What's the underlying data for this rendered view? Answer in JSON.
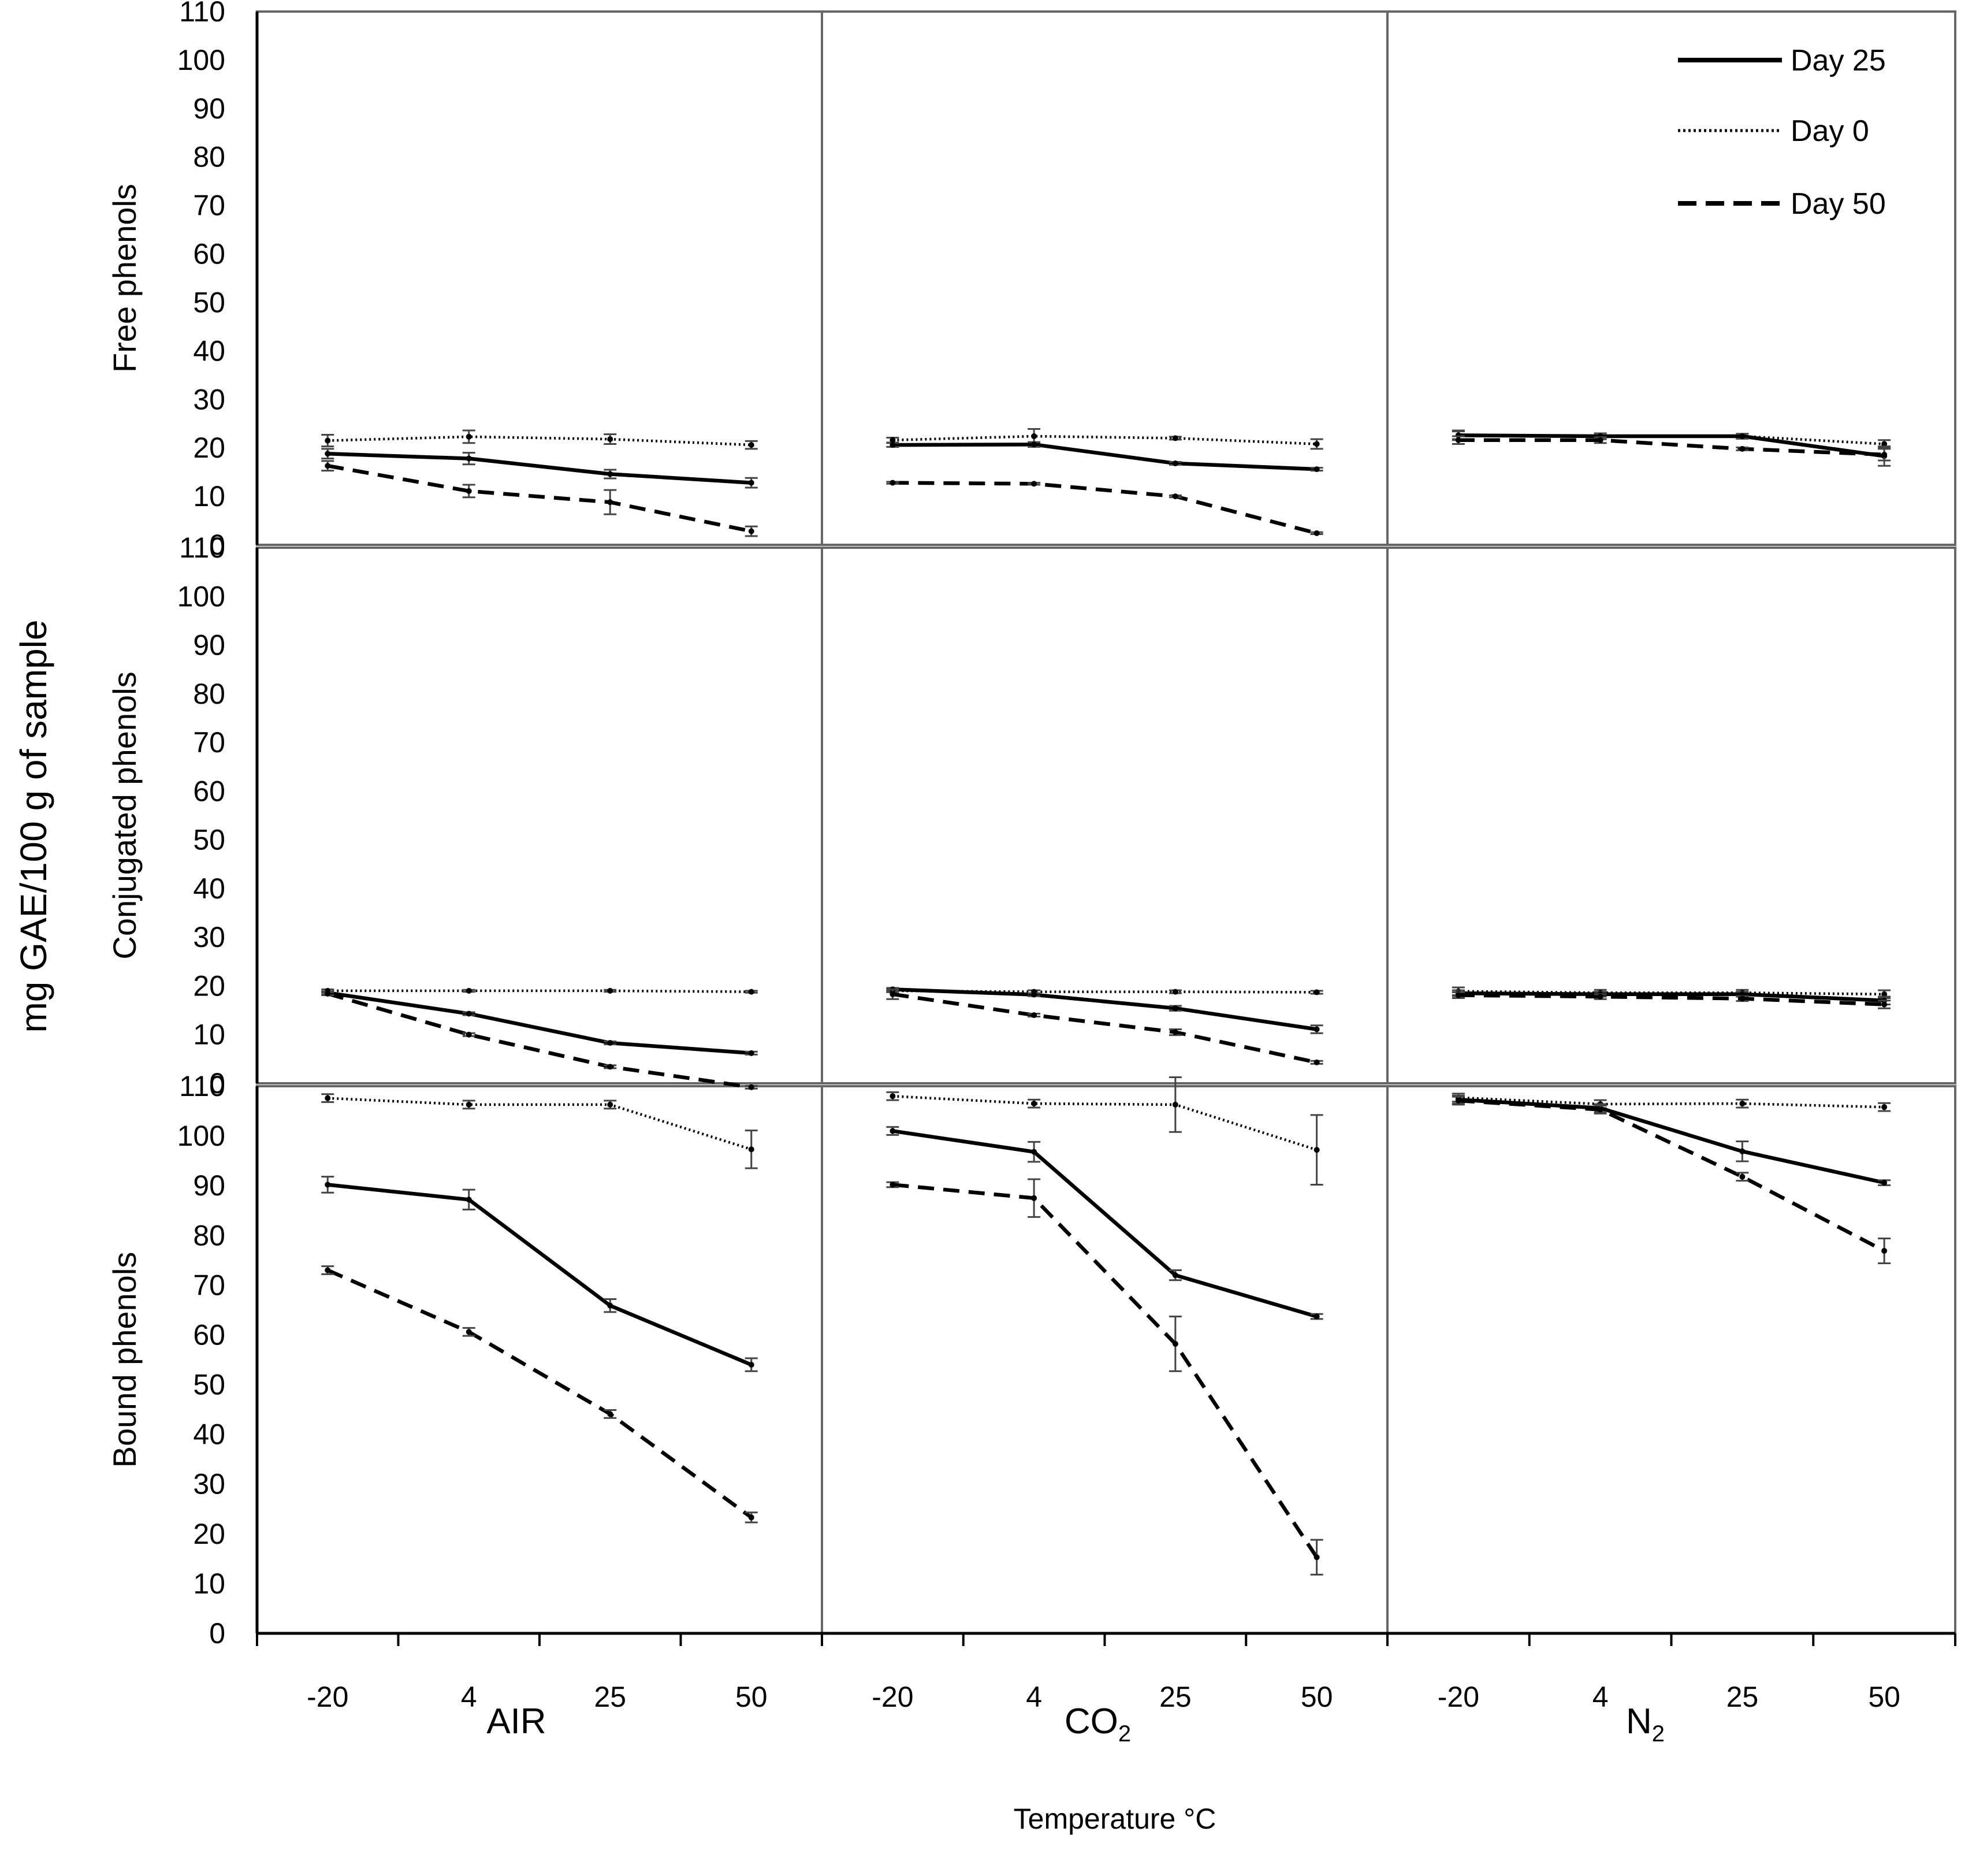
{
  "chart_data": {
    "type": "line",
    "layout": "3x3 panel grid",
    "x_categories": [
      "-20",
      "4",
      "25",
      "50"
    ],
    "y_axis": {
      "min": 0,
      "max": 110,
      "ticks": [
        "0",
        "10",
        "20",
        "30",
        "40",
        "50",
        "60",
        "70",
        "80",
        "90",
        "100",
        "110"
      ]
    },
    "ylabel": "mg GAE/100 g of sample",
    "xlabel": "Temperature °C",
    "rows": [
      {
        "key": "free",
        "label": "Free phenols"
      },
      {
        "key": "conjugated",
        "label": "Conjugated phenols"
      },
      {
        "key": "bound",
        "label": "Bound phenols"
      }
    ],
    "columns": [
      {
        "key": "air",
        "label_main": "AIR",
        "label_sub": ""
      },
      {
        "key": "co2",
        "label_main": "CO",
        "label_sub": "2"
      },
      {
        "key": "n2",
        "label_main": "N",
        "label_sub": "2"
      }
    ],
    "legend": {
      "position": "top-right of top-right panel",
      "entries": [
        {
          "label": "Day 25",
          "style": "solid"
        },
        {
          "label": "Day 0",
          "style": "dotted"
        },
        {
          "label": "Day 50",
          "style": "dashed"
        }
      ]
    },
    "grid": false,
    "series_styles": {
      "Day 0": "dotted",
      "Day 25": "solid",
      "Day 50": "dashed"
    },
    "panels": [
      {
        "row": "free",
        "col": "air",
        "series": [
          {
            "name": "Day 0",
            "values": [
              21.5,
              22.3,
              21.8,
              20.6
            ],
            "errors": [
              1.2,
              1.3,
              1.0,
              0.8
            ]
          },
          {
            "name": "Day 25",
            "values": [
              18.8,
              17.8,
              14.6,
              12.8
            ],
            "errors": [
              1.0,
              1.2,
              0.9,
              1.0
            ]
          },
          {
            "name": "Day 50",
            "values": [
              16.3,
              11.1,
              8.8,
              2.8
            ],
            "errors": [
              1.0,
              1.3,
              2.5,
              1.0
            ]
          }
        ]
      },
      {
        "row": "free",
        "col": "co2",
        "series": [
          {
            "name": "Day 0",
            "values": [
              21.6,
              22.4,
              22.0,
              20.8
            ],
            "errors": [
              0.5,
              1.5,
              0.3,
              1.0
            ]
          },
          {
            "name": "Day 25",
            "values": [
              20.6,
              20.7,
              16.8,
              15.6
            ],
            "errors": [
              0.4,
              0.5,
              0.3,
              0.3
            ]
          },
          {
            "name": "Day 50",
            "values": [
              12.8,
              12.6,
              10.0,
              2.4
            ],
            "errors": [
              0.2,
              0.2,
              0.2,
              0.2
            ]
          }
        ]
      },
      {
        "row": "free",
        "col": "n2",
        "series": [
          {
            "name": "Day 0",
            "values": [
              22.6,
              22.4,
              22.4,
              20.8
            ],
            "errors": [
              1.0,
              0.6,
              0.5,
              0.8
            ]
          },
          {
            "name": "Day 25",
            "values": [
              22.6,
              22.4,
              22.4,
              18.3
            ],
            "errors": [
              0.8,
              0.6,
              0.5,
              2.0
            ]
          },
          {
            "name": "Day 50",
            "values": [
              21.6,
              21.6,
              19.8,
              18.6
            ],
            "errors": [
              0.8,
              0.6,
              0.3,
              1.2
            ]
          }
        ]
      },
      {
        "row": "conjugated",
        "col": "air",
        "series": [
          {
            "name": "Day 0",
            "values": [
              19.0,
              19.0,
              19.0,
              18.8
            ],
            "errors": [
              0.3,
              0.2,
              0.2,
              0.2
            ]
          },
          {
            "name": "Day 25",
            "values": [
              18.6,
              14.3,
              8.3,
              6.2
            ],
            "errors": [
              0.3,
              0.3,
              0.3,
              0.3
            ]
          },
          {
            "name": "Day 50",
            "values": [
              18.4,
              10.0,
              3.4,
              -0.8
            ],
            "errors": [
              0.3,
              0.3,
              0.3,
              0.3
            ]
          }
        ]
      },
      {
        "row": "conjugated",
        "col": "co2",
        "series": [
          {
            "name": "Day 0",
            "values": [
              19.0,
              18.8,
              18.8,
              18.7
            ],
            "errors": [
              0.3,
              0.3,
              0.3,
              0.3
            ]
          },
          {
            "name": "Day 25",
            "values": [
              19.3,
              18.2,
              15.4,
              11.1
            ],
            "errors": [
              0.3,
              0.3,
              0.5,
              0.8
            ]
          },
          {
            "name": "Day 50",
            "values": [
              18.3,
              14.0,
              10.5,
              4.3
            ],
            "errors": [
              1.0,
              0.3,
              0.6,
              0.3
            ]
          }
        ]
      },
      {
        "row": "conjugated",
        "col": "n2",
        "series": [
          {
            "name": "Day 0",
            "values": [
              18.9,
              18.6,
              18.6,
              18.3
            ],
            "errors": [
              0.8,
              0.6,
              0.6,
              0.8
            ]
          },
          {
            "name": "Day 25",
            "values": [
              18.5,
              18.3,
              18.3,
              17.0
            ],
            "errors": [
              0.6,
              0.5,
              0.5,
              0.8
            ]
          },
          {
            "name": "Day 50",
            "values": [
              18.1,
              17.8,
              17.4,
              16.2
            ],
            "errors": [
              0.6,
              0.5,
              0.5,
              0.8
            ]
          }
        ]
      },
      {
        "row": "bound",
        "col": "air",
        "series": [
          {
            "name": "Day 0",
            "values": [
              107.6,
              106.3,
              106.3,
              97.3
            ],
            "errors": [
              0.8,
              0.8,
              0.8,
              3.8
            ]
          },
          {
            "name": "Day 25",
            "values": [
              90.2,
              87.2,
              65.9,
              54.0
            ],
            "errors": [
              1.6,
              2.0,
              1.3,
              1.3
            ]
          },
          {
            "name": "Day 50",
            "values": [
              73.0,
              60.6,
              44.1,
              23.3
            ],
            "errors": [
              0.8,
              0.8,
              0.8,
              1.0
            ]
          }
        ]
      },
      {
        "row": "bound",
        "col": "co2",
        "series": [
          {
            "name": "Day 0",
            "values": [
              108.0,
              106.5,
              106.3,
              97.2
            ],
            "errors": [
              0.8,
              0.8,
              5.5,
              7.0
            ]
          },
          {
            "name": "Day 25",
            "values": [
              101.0,
              96.8,
              72.0,
              63.7
            ],
            "errors": [
              0.8,
              2.0,
              1.0,
              0.5
            ]
          },
          {
            "name": "Day 50",
            "values": [
              90.2,
              87.5,
              58.2,
              15.3
            ],
            "errors": [
              0.5,
              3.8,
              5.5,
              3.5
            ]
          }
        ]
      },
      {
        "row": "bound",
        "col": "n2",
        "series": [
          {
            "name": "Day 0",
            "values": [
              107.7,
              106.4,
              106.5,
              105.8
            ],
            "errors": [
              0.8,
              0.8,
              0.8,
              0.8
            ]
          },
          {
            "name": "Day 25",
            "values": [
              107.3,
              105.6,
              96.9,
              90.6
            ],
            "errors": [
              0.8,
              0.8,
              2.0,
              0.5
            ]
          },
          {
            "name": "Day 50",
            "values": [
              107.1,
              105.3,
              91.8,
              76.9
            ],
            "errors": [
              0.8,
              0.8,
              0.8,
              2.5
            ]
          }
        ]
      }
    ]
  }
}
